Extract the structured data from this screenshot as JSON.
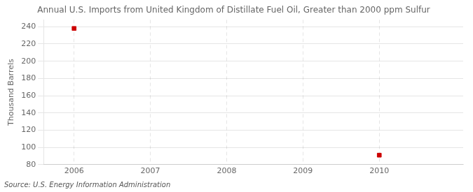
{
  "chart_data": {
    "type": "scatter",
    "title": "Annual U.S. Imports from United Kingdom of Distillate Fuel Oil, Greater than 2000 ppm Sulfur",
    "ylabel": "Thousand Barrels",
    "source": "Source: U.S. Energy Information Administration",
    "x": [
      2006,
      2010
    ],
    "values": [
      238,
      91
    ],
    "color": "#cc0000",
    "marker": "square",
    "xlim": [
      2005.6,
      2011.1
    ],
    "xticks": [
      2006,
      2007,
      2008,
      2009,
      2010
    ],
    "ylim": [
      80,
      248
    ],
    "yticks": [
      80,
      100,
      120,
      140,
      160,
      180,
      200,
      220,
      240
    ],
    "grid": true
  }
}
